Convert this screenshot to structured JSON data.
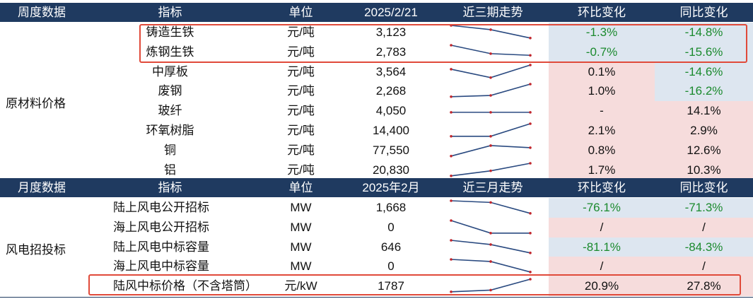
{
  "section1": {
    "header": [
      "周度数据",
      "指标",
      "单位",
      "2025/2/21",
      "近三期走势",
      "环比变化",
      "同比变化"
    ],
    "group": "原材料价格",
    "rows": [
      {
        "name": "铸造生铁",
        "unit": "元/吨",
        "value": "3,123",
        "mom": "-1.3%",
        "yoy": "-14.8%",
        "mom_bg": "blue",
        "yoy_bg": "blue",
        "mom_green": true,
        "yoy_green": true,
        "trend": [
          3,
          2,
          0
        ]
      },
      {
        "name": "炼钢生铁",
        "unit": "元/吨",
        "value": "2,783",
        "mom": "-0.7%",
        "yoy": "-15.6%",
        "mom_bg": "blue",
        "yoy_bg": "blue",
        "mom_green": true,
        "yoy_green": true,
        "trend": [
          3,
          1,
          0.6
        ]
      },
      {
        "name": "中厚板",
        "unit": "元/吨",
        "value": "3,564",
        "mom": "0.1%",
        "yoy": "-14.6%",
        "mom_bg": "pink",
        "yoy_bg": "blue",
        "mom_green": false,
        "yoy_green": true,
        "trend": [
          2,
          0,
          3
        ]
      },
      {
        "name": "废钢",
        "unit": "元/吨",
        "value": "2,268",
        "mom": "1.0%",
        "yoy": "-16.2%",
        "mom_bg": "pink",
        "yoy_bg": "blue",
        "mom_green": false,
        "yoy_green": true,
        "trend": [
          0,
          0.3,
          3
        ]
      },
      {
        "name": "玻纤",
        "unit": "元/吨",
        "value": "4,050",
        "mom": "-",
        "yoy": "14.1%",
        "mom_bg": "pink",
        "yoy_bg": "pink",
        "mom_green": false,
        "yoy_green": false,
        "trend": [
          1,
          1,
          1
        ]
      },
      {
        "name": "环氧树脂",
        "unit": "元/吨",
        "value": "14,400",
        "mom": "2.1%",
        "yoy": "2.9%",
        "mom_bg": "pink",
        "yoy_bg": "pink",
        "mom_green": false,
        "yoy_green": false,
        "trend": [
          0,
          0,
          3
        ]
      },
      {
        "name": "铜",
        "unit": "元/吨",
        "value": "77,550",
        "mom": "0.8%",
        "yoy": "12.6%",
        "mom_bg": "pink",
        "yoy_bg": "pink",
        "mom_green": false,
        "yoy_green": false,
        "trend": [
          0,
          2.5,
          2
        ]
      },
      {
        "name": "铝",
        "unit": "元/吨",
        "value": "20,830",
        "mom": "1.7%",
        "yoy": "10.3%",
        "mom_bg": "pink",
        "yoy_bg": "pink",
        "mom_green": false,
        "yoy_green": false,
        "trend": [
          0,
          1.2,
          3
        ]
      }
    ]
  },
  "section2": {
    "header": [
      "月度数据",
      "指标",
      "单位",
      "2025年2月",
      "近三月走势",
      "环比变化",
      "同比变化"
    ],
    "group": "风电招投标",
    "rows": [
      {
        "name": "陆上风电公开招标",
        "unit": "MW",
        "value": "1,668",
        "mom": "-76.1%",
        "yoy": "-71.3%",
        "mom_bg": "blue",
        "yoy_bg": "blue",
        "mom_green": true,
        "yoy_green": true,
        "trend": [
          3,
          2.6,
          0
        ]
      },
      {
        "name": "海上风电公开招标",
        "unit": "MW",
        "value": "0",
        "mom": "/",
        "yoy": "/",
        "mom_bg": "pink",
        "yoy_bg": "pink",
        "mom_green": false,
        "yoy_green": false,
        "trend": [
          3,
          0,
          0
        ]
      },
      {
        "name": "陆上风电中标容量",
        "unit": "MW",
        "value": "646",
        "mom": "-81.1%",
        "yoy": "-84.3%",
        "mom_bg": "blue",
        "yoy_bg": "blue",
        "mom_green": true,
        "yoy_green": true,
        "trend": [
          3,
          2,
          0
        ]
      },
      {
        "name": "海上风电中标容量",
        "unit": "MW",
        "value": "0",
        "mom": "/",
        "yoy": "/",
        "mom_bg": "pink",
        "yoy_bg": "pink",
        "mom_green": false,
        "yoy_green": false,
        "trend": [
          3,
          2.5,
          0
        ]
      },
      {
        "name": "陆风中标价格（不含塔筒）",
        "unit": "元/kW",
        "value": "1787",
        "mom": "20.9%",
        "yoy": "27.8%",
        "mom_bg": "pink",
        "yoy_bg": "pink",
        "mom_green": false,
        "yoy_green": false,
        "trend": [
          0,
          0.4,
          3
        ]
      }
    ]
  },
  "colors": {
    "header_bg": "#1f3a60",
    "positive_bg": "#f6dcdc",
    "negative_bg": "#dde6f0",
    "negative_text": "#1b8a2e",
    "highlight_border": "#e04a3a",
    "sparkline": "#2a4a80",
    "sparkline_marker": "#c0262d"
  }
}
